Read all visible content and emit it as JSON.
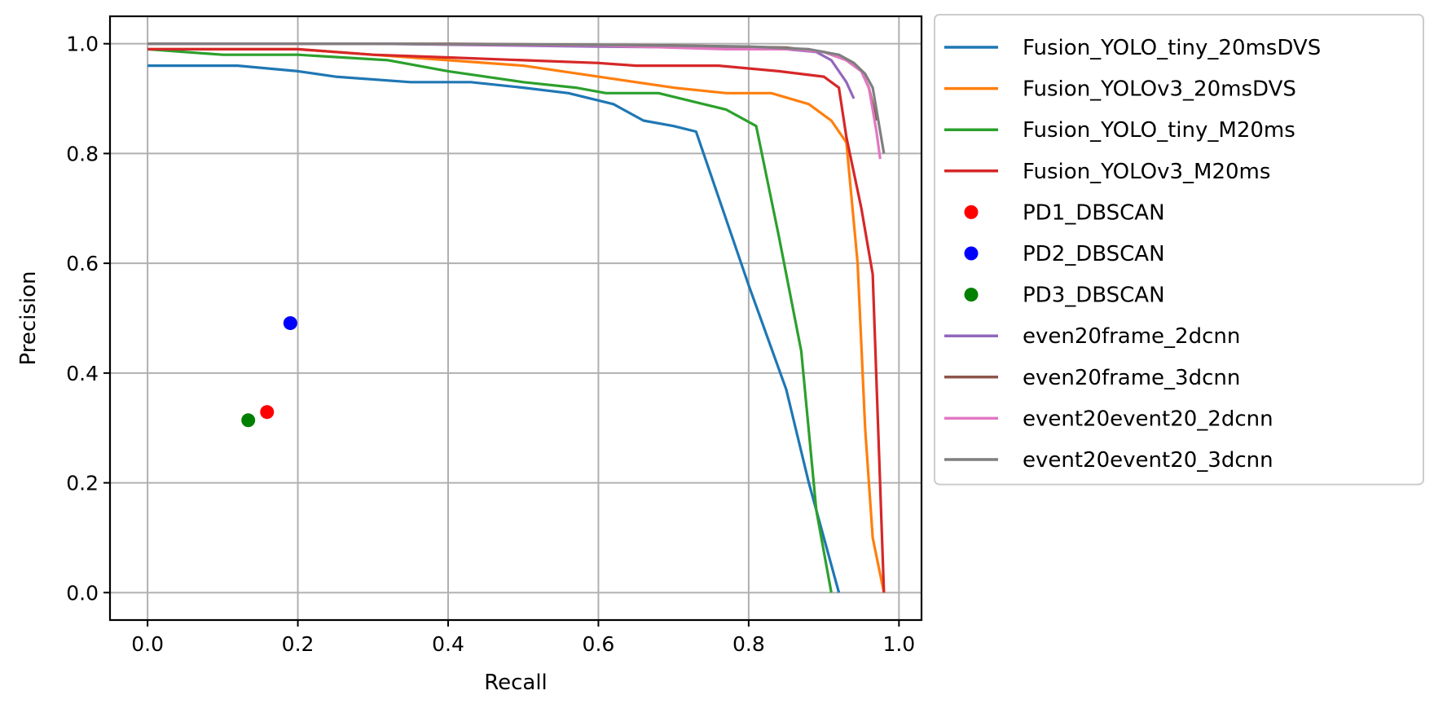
{
  "chart_data": {
    "type": "line",
    "title": "",
    "xlabel": "Recall",
    "ylabel": "Precision",
    "xlim": [
      -0.05,
      1.03
    ],
    "ylim": [
      -0.05,
      1.05
    ],
    "xticks": [
      0.0,
      0.2,
      0.4,
      0.6,
      0.8,
      1.0
    ],
    "yticks": [
      0.0,
      0.2,
      0.4,
      0.6,
      0.8,
      1.0
    ],
    "xtick_labels": [
      "0.0",
      "0.2",
      "0.4",
      "0.6",
      "0.8",
      "1.0"
    ],
    "ytick_labels": [
      "0.0",
      "0.2",
      "0.4",
      "0.6",
      "0.8",
      "1.0"
    ],
    "grid": true,
    "legend_position": "outside-right",
    "series": [
      {
        "name": "Fusion_YOLO_tiny_20msDVS",
        "kind": "line",
        "color": "#1f77b4",
        "x": [
          0.0,
          0.12,
          0.2,
          0.25,
          0.35,
          0.43,
          0.5,
          0.56,
          0.62,
          0.66,
          0.7,
          0.73,
          0.8,
          0.85,
          0.88,
          0.92
        ],
        "y": [
          0.96,
          0.96,
          0.95,
          0.94,
          0.93,
          0.93,
          0.92,
          0.91,
          0.89,
          0.86,
          0.85,
          0.84,
          0.56,
          0.37,
          0.2,
          0.0
        ]
      },
      {
        "name": "Fusion_YOLOv3_20msDVS",
        "kind": "line",
        "color": "#ff7f0e",
        "x": [
          0.0,
          0.2,
          0.3,
          0.4,
          0.5,
          0.6,
          0.7,
          0.77,
          0.83,
          0.88,
          0.91,
          0.93,
          0.945,
          0.955,
          0.965,
          0.98
        ],
        "y": [
          0.99,
          0.99,
          0.98,
          0.97,
          0.96,
          0.94,
          0.92,
          0.91,
          0.91,
          0.89,
          0.86,
          0.82,
          0.6,
          0.3,
          0.1,
          0.0
        ]
      },
      {
        "name": "Fusion_YOLO_tiny_M20ms",
        "kind": "line",
        "color": "#2ca02c",
        "x": [
          0.0,
          0.1,
          0.2,
          0.32,
          0.4,
          0.5,
          0.57,
          0.61,
          0.68,
          0.74,
          0.77,
          0.81,
          0.84,
          0.87,
          0.89,
          0.91
        ],
        "y": [
          0.99,
          0.98,
          0.98,
          0.97,
          0.95,
          0.93,
          0.92,
          0.91,
          0.91,
          0.89,
          0.88,
          0.85,
          0.65,
          0.44,
          0.15,
          0.0
        ]
      },
      {
        "name": "Fusion_YOLOv3_M20ms",
        "kind": "line",
        "color": "#d62728",
        "x": [
          0.0,
          0.2,
          0.3,
          0.4,
          0.5,
          0.6,
          0.65,
          0.7,
          0.76,
          0.8,
          0.84,
          0.9,
          0.92,
          0.93,
          0.95,
          0.965,
          0.98
        ],
        "y": [
          0.99,
          0.99,
          0.98,
          0.975,
          0.97,
          0.965,
          0.96,
          0.96,
          0.96,
          0.955,
          0.95,
          0.94,
          0.92,
          0.83,
          0.7,
          0.58,
          0.0
        ]
      },
      {
        "name": "PD1_DBSCAN",
        "kind": "point",
        "color": "#ff0000",
        "x": [
          0.159
        ],
        "y": [
          0.329
        ]
      },
      {
        "name": "PD2_DBSCAN",
        "kind": "point",
        "color": "#0000ff",
        "x": [
          0.19
        ],
        "y": [
          0.491
        ]
      },
      {
        "name": "PD3_DBSCAN",
        "kind": "point",
        "color": "#008000",
        "x": [
          0.134
        ],
        "y": [
          0.314
        ]
      },
      {
        "name": "even20frame_2dcnn",
        "kind": "line",
        "color": "#9467bd",
        "x": [
          0.0,
          0.3,
          0.6,
          0.75,
          0.85,
          0.89,
          0.91,
          0.92,
          0.93,
          0.94
        ],
        "y": [
          1.0,
          1.0,
          0.995,
          0.993,
          0.99,
          0.985,
          0.97,
          0.95,
          0.93,
          0.9
        ]
      },
      {
        "name": "even20frame_3dcnn",
        "kind": "line",
        "color": "#8c564b",
        "x": [
          0.0,
          0.4,
          0.7,
          0.85,
          0.9,
          0.93,
          0.95,
          0.96,
          0.965,
          0.97
        ],
        "y": [
          1.0,
          1.0,
          0.997,
          0.993,
          0.985,
          0.97,
          0.95,
          0.92,
          0.89,
          0.86
        ]
      },
      {
        "name": "event20event20_2dcnn",
        "kind": "line",
        "color": "#e377c2",
        "x": [
          0.0,
          0.3,
          0.6,
          0.77,
          0.86,
          0.9,
          0.93,
          0.95,
          0.96,
          0.965,
          0.97,
          0.975
        ],
        "y": [
          1.0,
          1.0,
          0.997,
          0.99,
          0.99,
          0.985,
          0.97,
          0.95,
          0.92,
          0.88,
          0.84,
          0.79
        ]
      },
      {
        "name": "event20event20_3dcnn",
        "kind": "line",
        "color": "#7f7f7f",
        "x": [
          0.0,
          0.3,
          0.6,
          0.8,
          0.88,
          0.92,
          0.94,
          0.955,
          0.965,
          0.97,
          0.975,
          0.98
        ],
        "y": [
          1.0,
          1.0,
          0.998,
          0.995,
          0.99,
          0.98,
          0.965,
          0.945,
          0.92,
          0.88,
          0.84,
          0.8
        ]
      }
    ]
  }
}
